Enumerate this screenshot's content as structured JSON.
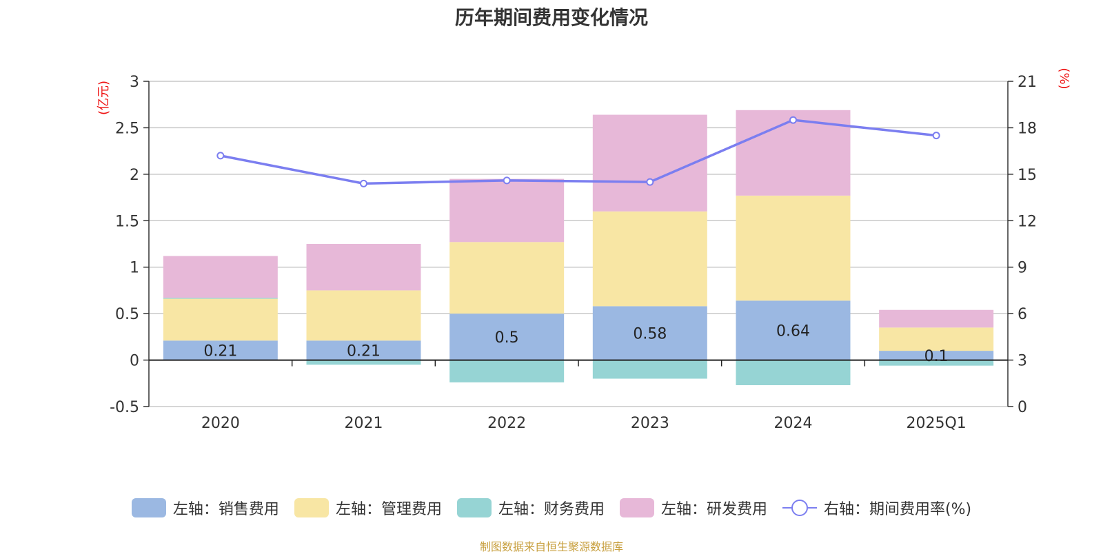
{
  "title": "历年期间费用变化情况",
  "source": "制图数据来自恒生聚源数据库",
  "colors": {
    "sales": "#9bb8e2",
    "admin": "#f8e6a4",
    "finance": "#96d4d4",
    "rd": "#e7b8d8",
    "rate": "#7b7ef0",
    "axis_unit": "#ee1111"
  },
  "chart_data": {
    "type": "bar",
    "categories": [
      "2020",
      "2021",
      "2022",
      "2023",
      "2024",
      "2025Q1"
    ],
    "series": [
      {
        "name": "左轴：销售费用",
        "values": [
          0.21,
          0.21,
          0.5,
          0.58,
          0.64,
          0.1
        ],
        "labels": [
          "0.21",
          "0.21",
          "0.5",
          "0.58",
          "0.64",
          "0.1"
        ]
      },
      {
        "name": "左轴：管理费用",
        "values": [
          0.45,
          0.54,
          0.77,
          1.02,
          1.13,
          0.25
        ]
      },
      {
        "name": "左轴：财务费用",
        "values": [
          0.01,
          -0.05,
          -0.24,
          -0.2,
          -0.27,
          -0.06
        ]
      },
      {
        "name": "左轴：研发费用",
        "values": [
          0.45,
          0.5,
          0.68,
          1.04,
          0.92,
          0.19
        ]
      },
      {
        "name": "右轴：期间费用率(%)",
        "axis": "right",
        "type": "line",
        "values": [
          16.2,
          14.4,
          14.6,
          14.5,
          18.5,
          17.5
        ]
      }
    ],
    "left_axis": {
      "unit": "(亿元)",
      "ylim": [
        -0.5,
        3
      ],
      "ticks": [
        "-0.5",
        "0",
        "0.5",
        "1",
        "1.5",
        "2",
        "2.5",
        "3"
      ]
    },
    "right_axis": {
      "unit": "(%)",
      "ylim": [
        0,
        21
      ],
      "ticks": [
        "0",
        "3",
        "6",
        "9",
        "12",
        "15",
        "18",
        "21"
      ]
    },
    "grid": true,
    "legend_position": "bottom",
    "stacked": true
  }
}
